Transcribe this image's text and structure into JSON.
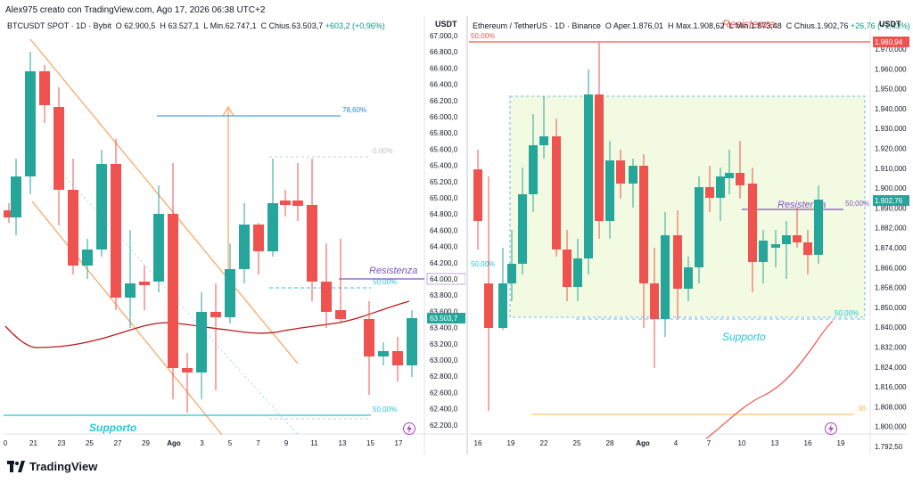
{
  "header": {
    "text": "Alex975 creato con TradingView.com, Ago 17, 2026 06:38 UTC+2"
  },
  "logo": {
    "text": "TradingView"
  },
  "left_chart": {
    "legend": {
      "symbol": "BTCUSDT SPOT · 1D · Bybit",
      "open_label": "O",
      "open": "62.900,5",
      "high_label": "H",
      "high": "63.527,1",
      "low_label": "L",
      "low": "Min.62.747,1",
      "close_label": "C",
      "close": "Chius.63.503,7",
      "change": "+603,2 (+0,96%)"
    },
    "currency": "USDT",
    "last_price": "63.503,7",
    "annotations": {
      "fib_786": "78,60%",
      "fib_0": "0,00%",
      "fib_50": "50,00%",
      "fib_50_low": "50,00%",
      "resistance": "Resistenza",
      "support": "Supporto"
    },
    "price_ticks": [
      "67.000,0",
      "66.800,0",
      "66.600,0",
      "66.400,0",
      "66.200,0",
      "66.000,0",
      "65.800,0",
      "65.600,0",
      "65.400,0",
      "65.200,0",
      "65.000,0",
      "64.800,0",
      "64.600,0",
      "64.400,0",
      "64.200,0",
      "64.000,0",
      "63.800,0",
      "63.600,0",
      "63.400,0",
      "63.200,0",
      "63.000,0",
      "62.800,0",
      "62.600,0",
      "62.400,0",
      "62.200,0"
    ],
    "time_ticks": [
      "0",
      "21",
      "23",
      "25",
      "27",
      "29",
      "Ago",
      "3",
      "5",
      "7",
      "9",
      "11",
      "13",
      "15",
      "17"
    ]
  },
  "right_chart": {
    "legend": {
      "symbol": "Ethereum / TetherUS · 1D · Binance",
      "open": "Aper.1.876,01",
      "high": "Max.1.908,62",
      "low": "Min.1.873,48",
      "close": "Chius.1.902,76",
      "change": "+26,76 (+1,43%)"
    },
    "currency": "USDT",
    "last_price": "1.902,76",
    "resistance_price": "1.980,94",
    "annotations": {
      "fib_50_top": "50,00%",
      "resistance_top": "Resistenza",
      "resistance": "Resistenza",
      "fib_50_right": "50,00%",
      "fib_50_left": "50,00%",
      "fib_50_bottom": "50,00%",
      "support": "Supporto",
      "fib_36": "36"
    },
    "price_ticks": [
      "1.970,000",
      "1.960,000",
      "1.950,000",
      "1.940,000",
      "1.930,000",
      "1.920,000",
      "1.910,000",
      "1.900,000",
      "1.890,000",
      "1.882,000",
      "1.874,000",
      "1.866,000",
      "1.858,000",
      "1.850,000",
      "1.840,000",
      "1.832,000",
      "1.824,000",
      "1.816,000",
      "1.808,000",
      "1.800,000",
      "1.792,50"
    ],
    "time_ticks": [
      "16",
      "19",
      "22",
      "25",
      "28",
      "Ago",
      "4",
      "7",
      "10",
      "13",
      "16",
      "19"
    ]
  },
  "colors": {
    "up": "#26a69a",
    "down": "#ef5350",
    "resistance_line": "#7e57c2",
    "support_line": "#26c6da",
    "fib_blue": "#1e88e5",
    "orange": "#f7a35c",
    "ma": "#b71c1c"
  },
  "icons": [
    "tradingview-logo-icon",
    "lightning-icon"
  ]
}
